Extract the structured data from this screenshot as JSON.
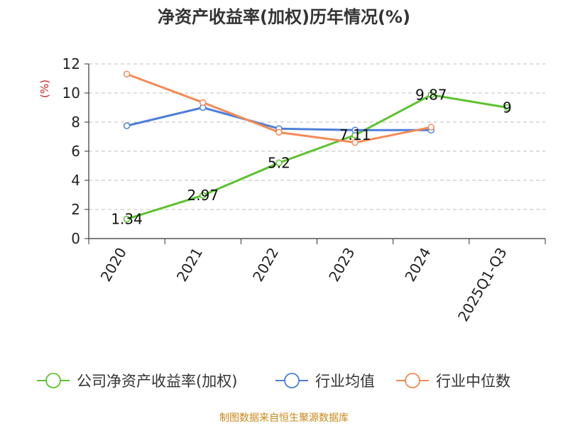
{
  "title": "净资产收益率(加权)历年情况(%)",
  "source": "制图数据来自恒生聚源数据库",
  "chart_data": {
    "type": "line",
    "title": "净资产收益率(加权)历年情况(%)",
    "ylabel": "(%)",
    "xlabel": "",
    "categories": [
      "2020",
      "2021",
      "2022",
      "2023",
      "2024",
      "2025Q1-Q3"
    ],
    "ylim": [
      0,
      12
    ],
    "yticks": [
      0,
      2,
      4,
      6,
      8,
      10,
      12
    ],
    "grid": "horizontal dashed",
    "legend_position": "bottom",
    "series": [
      {
        "name": "公司净资产收益率(加权)",
        "color": "#5cc22f",
        "values": [
          1.34,
          2.97,
          5.2,
          7.11,
          9.87,
          9
        ],
        "labels": [
          "1.34",
          "2.97",
          "5.2",
          "7.11",
          "9.87",
          "9"
        ]
      },
      {
        "name": "行业均值",
        "color": "#4d7fd9",
        "values": [
          7.75,
          9.0,
          7.55,
          7.45,
          7.45,
          null
        ]
      },
      {
        "name": "行业中位数",
        "color": "#f58a54",
        "values": [
          11.3,
          9.35,
          7.3,
          6.6,
          7.65,
          null
        ]
      }
    ]
  }
}
